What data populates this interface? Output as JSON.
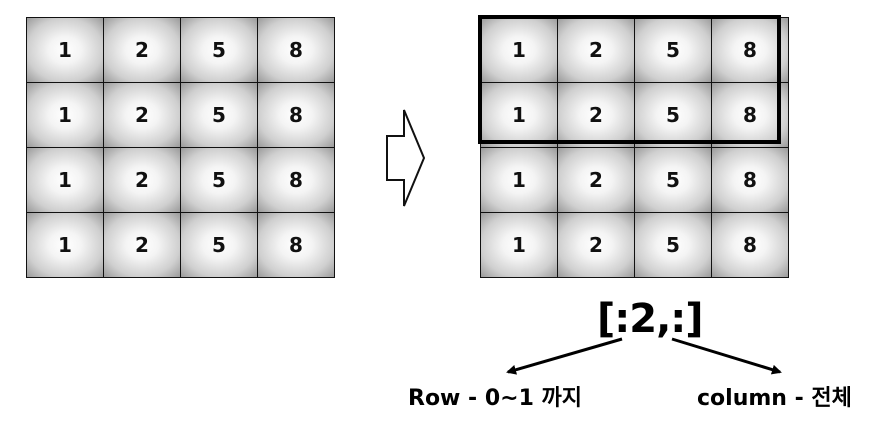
{
  "left_grid": {
    "rows": [
      [
        "1",
        "2",
        "5",
        "8"
      ],
      [
        "1",
        "2",
        "5",
        "8"
      ],
      [
        "1",
        "2",
        "5",
        "8"
      ],
      [
        "1",
        "2",
        "5",
        "8"
      ]
    ]
  },
  "right_grid": {
    "rows": [
      [
        "1",
        "2",
        "5",
        "8"
      ],
      [
        "1",
        "2",
        "5",
        "8"
      ],
      [
        "1",
        "2",
        "5",
        "8"
      ],
      [
        "1",
        "2",
        "5",
        "8"
      ]
    ],
    "highlighted_rows": 2
  },
  "slice_label": "[:2,:]",
  "row_label": "Row - 0~1 까지",
  "column_label": "column - 전체",
  "icons": {
    "arrow": "right-arrow-outline-icon"
  }
}
